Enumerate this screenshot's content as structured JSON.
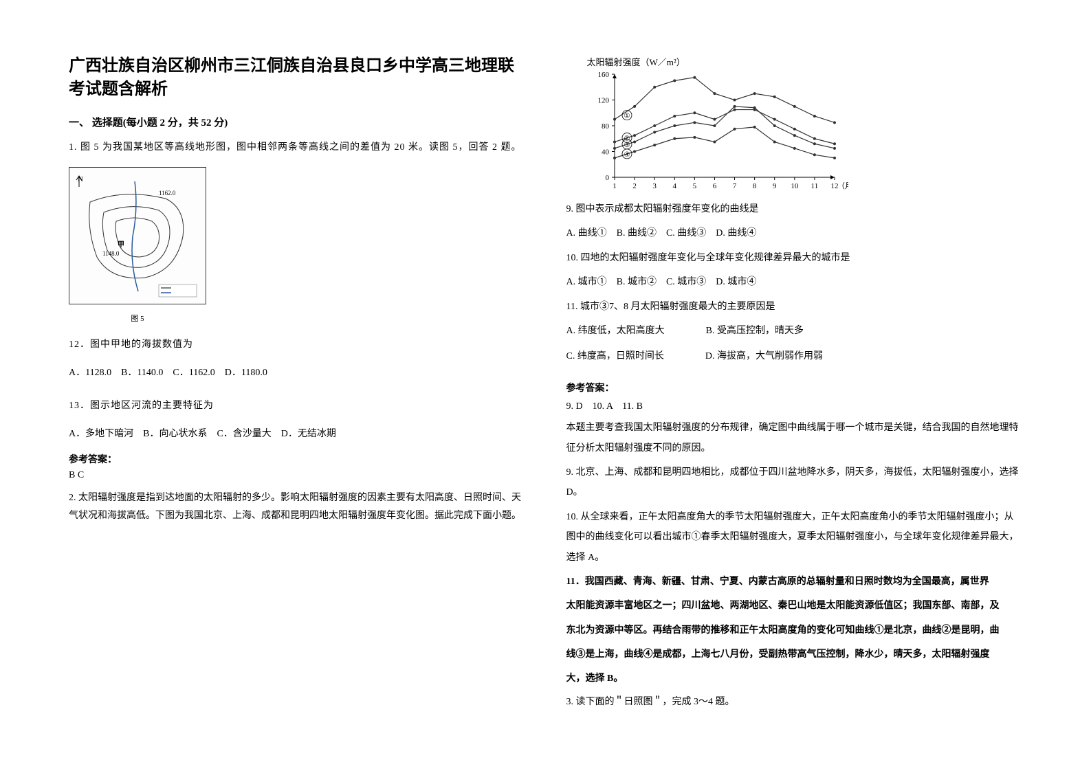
{
  "title": "广西壮族自治区柳州市三江侗族自治县良口乡中学高三地理联考试题含解析",
  "section1": {
    "header": "一、 选择题(每小题 2 分，共 52 分)"
  },
  "q1": {
    "intro": "1. 图 5 为我国某地区等高线地形图，图中相邻两条等高线之间的差值为 20 米。读图 5，回答 2 题。",
    "caption": "图 5",
    "q12": "12．图中甲地的海拔数值为",
    "q12_options": "A．1128.0　B．1140.0　C．1162.0　D．1180.0",
    "q13": "13．图示地区河流的主要特征为",
    "q13_options": "A．多地下暗河　B．向心状水系　C．含沙量大　D．无结冰期",
    "answer_label": "参考答案：",
    "answer": "B C"
  },
  "q2": {
    "intro": "2. 太阳辐射强度是指到达地面的太阳辐射的多少。影响太阳辐射强度的因素主要有太阳高度、日照时间、天气状况和海拔高低。下图为我国北京、上海、成都和昆明四地太阳辐射强度年变化图。据此完成下面小题。"
  },
  "chart": {
    "title": "太阳辐射强度（W／m²）",
    "xlabel": "（月）",
    "ylim": [
      0,
      160
    ],
    "yticks": [
      0,
      40,
      80,
      120,
      160
    ],
    "xticks": [
      1,
      2,
      3,
      4,
      5,
      6,
      7,
      8,
      9,
      10,
      11,
      12
    ],
    "series1": {
      "label": "①",
      "color": "#333333",
      "values": [
        90,
        110,
        140,
        150,
        155,
        130,
        120,
        130,
        125,
        110,
        95,
        85
      ]
    },
    "series2": {
      "label": "②",
      "color": "#333333",
      "values": [
        55,
        65,
        80,
        95,
        100,
        90,
        105,
        105,
        90,
        75,
        60,
        52
      ]
    },
    "series3": {
      "label": "③",
      "color": "#333333",
      "values": [
        45,
        55,
        70,
        80,
        85,
        80,
        110,
        108,
        80,
        65,
        52,
        45
      ]
    },
    "series4": {
      "label": "④",
      "color": "#333333",
      "values": [
        30,
        40,
        50,
        60,
        62,
        55,
        75,
        78,
        55,
        45,
        35,
        30
      ]
    }
  },
  "q9": {
    "text": "9. 图中表示成都太阳辐射强度年变化的曲线是",
    "options": "A. 曲线①　B. 曲线②　C. 曲线③　D. 曲线④"
  },
  "q10": {
    "text": "10. 四地的太阳辐射强度年变化与全球年变化规律差异最大的城市是",
    "options": "A. 城市①　B. 城市②　C. 城市③　D. 城市④"
  },
  "q11": {
    "text": "11. 城市③7、8 月太阳辐射强度最大的主要原因是",
    "opt_a": "A. 纬度低，太阳高度大",
    "opt_b": "B. 受高压控制，晴天多",
    "opt_c": "C. 纬度高，日照时间长",
    "opt_d": "D. 海拔高，大气削弱作用弱"
  },
  "answers2": {
    "label": "参考答案：",
    "line": "9. D　10. A　11. B",
    "exp1": "本题主要考查我国太阳辐射强度的分布规律，确定图中曲线属于哪一个城市是关键，结合我国的自然地理特征分析太阳辐射强度不同的原因。",
    "exp9": "9. 北京、上海、成都和昆明四地相比，成都位于四川盆地降水多，阴天多，海拔低，太阳辐射强度小，选择 D。",
    "exp10": "10. 从全球来看，正午太阳高度角大的季节太阳辐射强度大，正午太阳高度角小的季节太阳辐射强度小；从图中的曲线变化可以看出城市①春季太阳辐射强度大，夏季太阳辐射强度小，与全球年变化规律差异最大，选择 A。",
    "exp11a": "11．我国西藏、青海、新疆、甘肃、宁夏、内蒙古高原的总辐射量和日照时数均为全国最高，属世界",
    "exp11b": "太阳能资源丰富地区之一；四川盆地、两湖地区、秦巴山地是太阳能资源低值区；我国东部、南部，及",
    "exp11c": "东北为资源中等区。再结合雨带的推移和正午太阳高度角的变化可知曲线①是北京，曲线②是昆明，曲",
    "exp11d": "线③是上海，曲线④是成都，上海七八月份，受副热带高气压控制，降水少，晴天多，太阳辐射强度",
    "exp11e": "大，选择 B。"
  },
  "q3": {
    "text": "3. 读下面的＂日照图＂，完成 3～4 题。"
  },
  "map": {
    "label1": "1162.0",
    "label2": "1148.0",
    "jia": "甲"
  }
}
